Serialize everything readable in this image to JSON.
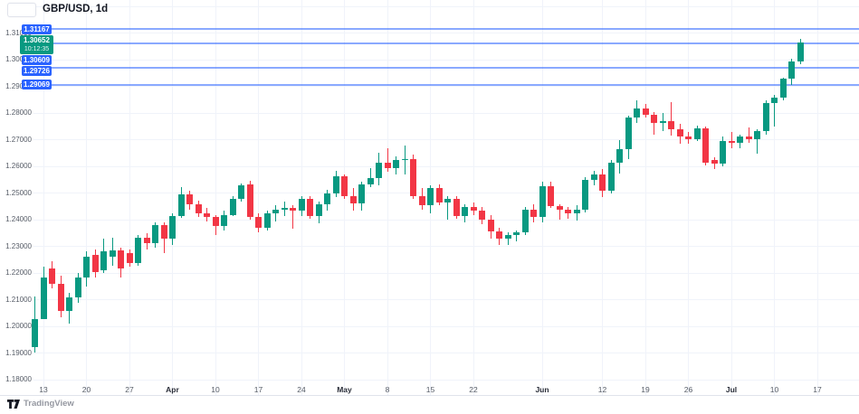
{
  "header": {
    "symbol_title": "GBP/USD, 1d"
  },
  "price_scale": {
    "labels": [
      "1.18000",
      "1.19000",
      "1.20000",
      "1.21000",
      "1.22000",
      "1.23000",
      "1.24000",
      "1.25000",
      "1.26000",
      "1.27000",
      "1.28000",
      "1.29000",
      "1.30000",
      "1.31000"
    ]
  },
  "time_scale": {
    "ticks": [
      {
        "label": "13",
        "index": 1,
        "bold": false
      },
      {
        "label": "20",
        "index": 6,
        "bold": false
      },
      {
        "label": "27",
        "index": 11,
        "bold": false
      },
      {
        "label": "Apr",
        "index": 16,
        "bold": true
      },
      {
        "label": "10",
        "index": 21,
        "bold": false
      },
      {
        "label": "17",
        "index": 26,
        "bold": false
      },
      {
        "label": "24",
        "index": 31,
        "bold": false
      },
      {
        "label": "May",
        "index": 36,
        "bold": true
      },
      {
        "label": "8",
        "index": 41,
        "bold": false
      },
      {
        "label": "15",
        "index": 46,
        "bold": false
      },
      {
        "label": "22",
        "index": 51,
        "bold": false
      },
      {
        "label": "Jun",
        "index": 59,
        "bold": true
      },
      {
        "label": "12",
        "index": 66,
        "bold": false
      },
      {
        "label": "19",
        "index": 71,
        "bold": false
      },
      {
        "label": "26",
        "index": 76,
        "bold": false
      },
      {
        "label": "Jul",
        "index": 81,
        "bold": true
      },
      {
        "label": "10",
        "index": 86,
        "bold": false
      },
      {
        "label": "17",
        "index": 91,
        "bold": false
      }
    ]
  },
  "alert_lines": [
    {
      "label": "1.31167",
      "price": 1.31167
    },
    {
      "label": "1.30609",
      "price": 1.30609
    },
    {
      "label": "1.29726",
      "price": 1.29726
    },
    {
      "label": "1.29069",
      "price": 1.29069
    }
  ],
  "current_price": {
    "label": "1.30652",
    "price": 1.30652,
    "countdown": "10:12:35"
  },
  "attribution": {
    "brand": "TradingView"
  },
  "colors": {
    "up": "#089981",
    "down": "#F23645",
    "alert": "#2962FF",
    "current_badge": "#089981",
    "grid": "#F0F3FA",
    "axis_text": "#555B66",
    "title_text": "#131722",
    "attribution_text": "#9598A1",
    "background": "#FFFFFF"
  },
  "chart_data": {
    "type": "candlestick",
    "symbol": "GBP/USD",
    "interval": "1d",
    "title": "GBP/USD, 1d",
    "ylim": [
      1.18,
      1.32
    ],
    "grid": true,
    "price_scale_side": "left",
    "visible_dates": [
      "2023-03-10",
      "2023-07-17"
    ],
    "horizontal_lines": [
      1.31167,
      1.30609,
      1.29726,
      1.29069
    ],
    "last_price": 1.30652,
    "columns": [
      "date",
      "open",
      "high",
      "low",
      "close"
    ],
    "candles": [
      [
        "2023-03-10",
        1.1925,
        1.2113,
        1.1902,
        1.203
      ],
      [
        "2023-03-13",
        1.203,
        1.2225,
        1.2028,
        1.2185
      ],
      [
        "2023-03-14",
        1.2218,
        1.2247,
        1.2145,
        1.2162
      ],
      [
        "2023-03-15",
        1.2162,
        1.219,
        1.2035,
        1.2058
      ],
      [
        "2023-03-16",
        1.2058,
        1.2128,
        1.201,
        1.211
      ],
      [
        "2023-03-17",
        1.211,
        1.2203,
        1.2088,
        1.2183
      ],
      [
        "2023-03-20",
        1.2183,
        1.2284,
        1.215,
        1.2264
      ],
      [
        "2023-03-21",
        1.2268,
        1.2288,
        1.2185,
        1.2205
      ],
      [
        "2023-03-22",
        1.2213,
        1.233,
        1.22,
        1.2283
      ],
      [
        "2023-03-23",
        1.2262,
        1.2335,
        1.223,
        1.2287
      ],
      [
        "2023-03-24",
        1.2285,
        1.2295,
        1.2185,
        1.2218
      ],
      [
        "2023-03-27",
        1.2275,
        1.229,
        1.2225,
        1.2238
      ],
      [
        "2023-03-28",
        1.2238,
        1.2345,
        1.223,
        1.2332
      ],
      [
        "2023-03-29",
        1.2332,
        1.2352,
        1.229,
        1.2313
      ],
      [
        "2023-03-30",
        1.2313,
        1.2392,
        1.2295,
        1.238
      ],
      [
        "2023-03-31",
        1.238,
        1.239,
        1.2275,
        1.233
      ],
      [
        "2023-04-03",
        1.233,
        1.2425,
        1.2305,
        1.2415
      ],
      [
        "2023-04-04",
        1.2415,
        1.2525,
        1.2408,
        1.2498
      ],
      [
        "2023-04-05",
        1.2498,
        1.251,
        1.244,
        1.246
      ],
      [
        "2023-04-06",
        1.246,
        1.2472,
        1.2413,
        1.2425
      ],
      [
        "2023-04-07",
        1.2425,
        1.2445,
        1.2395,
        1.2412
      ],
      [
        "2023-04-10",
        1.2412,
        1.242,
        1.2344,
        1.2378
      ],
      [
        "2023-04-11",
        1.2378,
        1.2435,
        1.236,
        1.242
      ],
      [
        "2023-04-12",
        1.242,
        1.249,
        1.2415,
        1.248
      ],
      [
        "2023-04-13",
        1.248,
        1.2537,
        1.247,
        1.253
      ],
      [
        "2023-04-14",
        1.2535,
        1.2546,
        1.24,
        1.2412
      ],
      [
        "2023-04-17",
        1.2412,
        1.2425,
        1.2355,
        1.237
      ],
      [
        "2023-04-18",
        1.237,
        1.2437,
        1.236,
        1.2425
      ],
      [
        "2023-04-19",
        1.2425,
        1.2455,
        1.2395,
        1.2438
      ],
      [
        "2023-04-20",
        1.2438,
        1.247,
        1.2415,
        1.2445
      ],
      [
        "2023-04-21",
        1.2445,
        1.2455,
        1.2367,
        1.2435
      ],
      [
        "2023-04-24",
        1.2435,
        1.249,
        1.2415,
        1.248
      ],
      [
        "2023-04-25",
        1.248,
        1.249,
        1.2405,
        1.2415
      ],
      [
        "2023-04-26",
        1.2415,
        1.247,
        1.2387,
        1.246
      ],
      [
        "2023-04-27",
        1.246,
        1.2515,
        1.2435,
        1.25
      ],
      [
        "2023-04-28",
        1.25,
        1.2584,
        1.2485,
        1.2565
      ],
      [
        "2023-05-01",
        1.2565,
        1.257,
        1.248,
        1.249
      ],
      [
        "2023-05-02",
        1.249,
        1.252,
        1.2435,
        1.2462
      ],
      [
        "2023-05-03",
        1.2462,
        1.2545,
        1.2437,
        1.2535
      ],
      [
        "2023-05-04",
        1.2535,
        1.2595,
        1.2525,
        1.2558
      ],
      [
        "2023-05-05",
        1.2558,
        1.2652,
        1.253,
        1.2615
      ],
      [
        "2023-05-08",
        1.2615,
        1.2668,
        1.258,
        1.2595
      ],
      [
        "2023-05-09",
        1.2595,
        1.264,
        1.257,
        1.2625
      ],
      [
        "2023-05-10",
        1.2625,
        1.268,
        1.257,
        1.263
      ],
      [
        "2023-05-11",
        1.263,
        1.2645,
        1.248,
        1.249
      ],
      [
        "2023-05-12",
        1.249,
        1.252,
        1.244,
        1.2455
      ],
      [
        "2023-05-15",
        1.2455,
        1.253,
        1.2425,
        1.252
      ],
      [
        "2023-05-16",
        1.252,
        1.2535,
        1.2455,
        1.2465
      ],
      [
        "2023-05-17",
        1.2465,
        1.2488,
        1.24,
        1.248
      ],
      [
        "2023-05-18",
        1.248,
        1.249,
        1.2405,
        1.2415
      ],
      [
        "2023-05-19",
        1.2415,
        1.246,
        1.239,
        1.2448
      ],
      [
        "2023-05-22",
        1.2448,
        1.2465,
        1.242,
        1.2435
      ],
      [
        "2023-05-23",
        1.2435,
        1.245,
        1.2385,
        1.24
      ],
      [
        "2023-05-24",
        1.24,
        1.242,
        1.233,
        1.2358
      ],
      [
        "2023-05-25",
        1.2358,
        1.237,
        1.2308,
        1.233
      ],
      [
        "2023-05-26",
        1.233,
        1.2355,
        1.2305,
        1.2345
      ],
      [
        "2023-05-29",
        1.2345,
        1.2362,
        1.232,
        1.2353
      ],
      [
        "2023-05-30",
        1.2353,
        1.245,
        1.2345,
        1.244
      ],
      [
        "2023-05-31",
        1.244,
        1.246,
        1.239,
        1.241
      ],
      [
        "2023-06-01",
        1.241,
        1.2545,
        1.239,
        1.2528
      ],
      [
        "2023-06-02",
        1.2528,
        1.2545,
        1.2445,
        1.2452
      ],
      [
        "2023-06-05",
        1.2452,
        1.246,
        1.24,
        1.2438
      ],
      [
        "2023-06-06",
        1.2438,
        1.245,
        1.2405,
        1.2425
      ],
      [
        "2023-06-07",
        1.2425,
        1.2455,
        1.2398,
        1.244
      ],
      [
        "2023-06-08",
        1.244,
        1.256,
        1.243,
        1.2552
      ],
      [
        "2023-06-09",
        1.2552,
        1.2585,
        1.253,
        1.2572
      ],
      [
        "2023-06-12",
        1.2572,
        1.259,
        1.2485,
        1.251
      ],
      [
        "2023-06-13",
        1.251,
        1.2625,
        1.25,
        1.2614
      ],
      [
        "2023-06-14",
        1.2614,
        1.27,
        1.2575,
        1.2665
      ],
      [
        "2023-06-15",
        1.2665,
        1.279,
        1.263,
        1.2785
      ],
      [
        "2023-06-16",
        1.2785,
        1.2848,
        1.2765,
        1.282
      ],
      [
        "2023-06-19",
        1.282,
        1.2835,
        1.2785,
        1.2795
      ],
      [
        "2023-06-20",
        1.2795,
        1.2805,
        1.272,
        1.2765
      ],
      [
        "2023-06-21",
        1.2765,
        1.2802,
        1.2735,
        1.2772
      ],
      [
        "2023-06-22",
        1.2772,
        1.2842,
        1.2715,
        1.274
      ],
      [
        "2023-06-23",
        1.274,
        1.276,
        1.2687,
        1.2715
      ],
      [
        "2023-06-26",
        1.2715,
        1.273,
        1.2685,
        1.2703
      ],
      [
        "2023-06-27",
        1.2703,
        1.2755,
        1.2695,
        1.2745
      ],
      [
        "2023-06-28",
        1.2745,
        1.275,
        1.2605,
        1.2615
      ],
      [
        "2023-06-29",
        1.2625,
        1.2635,
        1.2591,
        1.2612
      ],
      [
        "2023-06-30",
        1.2612,
        1.2714,
        1.26,
        1.2695
      ],
      [
        "2023-07-03",
        1.2695,
        1.273,
        1.2668,
        1.2688
      ],
      [
        "2023-07-04",
        1.2688,
        1.272,
        1.267,
        1.2715
      ],
      [
        "2023-07-05",
        1.2715,
        1.2748,
        1.269,
        1.2703
      ],
      [
        "2023-07-06",
        1.2703,
        1.274,
        1.265,
        1.2735
      ],
      [
        "2023-07-07",
        1.2735,
        1.285,
        1.272,
        1.2838
      ],
      [
        "2023-07-10",
        1.2838,
        1.287,
        1.275,
        1.286
      ],
      [
        "2023-07-11",
        1.286,
        1.2935,
        1.285,
        1.293
      ],
      [
        "2023-07-12",
        1.293,
        1.3005,
        1.2905,
        1.2995
      ],
      [
        "2023-07-13",
        1.2995,
        1.3078,
        1.2985,
        1.30652
      ]
    ]
  }
}
